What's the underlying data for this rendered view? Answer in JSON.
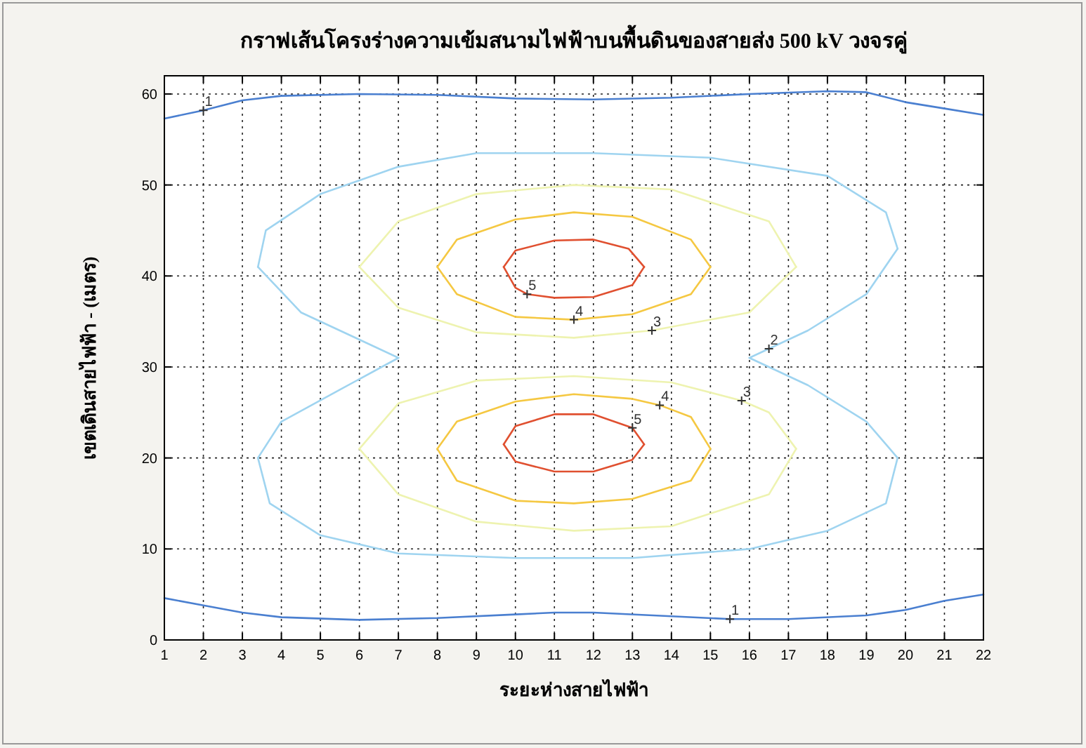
{
  "chart_data": {
    "type": "line",
    "title": "กราฟเส้นโครงร่างความเข้มสนามไฟฟ้าบนพื้นดินของสายส่ง 500 kV วงจรคู่",
    "xlabel": "ระยะห่างสายไฟฟ้า",
    "ylabel": "เขตเดินสายไฟฟ้า - (เมตร)",
    "xlim": [
      1,
      22
    ],
    "ylim": [
      0,
      62
    ],
    "xticks": [
      1,
      2,
      3,
      4,
      5,
      6,
      7,
      8,
      9,
      10,
      11,
      12,
      13,
      14,
      15,
      16,
      17,
      18,
      19,
      20,
      21,
      22
    ],
    "yticks": [
      0,
      10,
      20,
      30,
      40,
      50,
      60
    ],
    "grid": true,
    "series": [
      {
        "color": "#4a7fd0",
        "x": [
          1,
          2,
          3,
          4,
          6,
          8,
          10,
          12,
          14,
          16,
          18,
          19,
          20,
          21,
          22
        ],
        "values": [
          57.3,
          58.2,
          59.3,
          59.8,
          60,
          59.9,
          59.5,
          59.4,
          59.6,
          60,
          60.3,
          60.2,
          59.1,
          58.4,
          57.7
        ]
      },
      {
        "color": "#4a7fd0",
        "x": [
          1,
          2,
          3,
          4,
          6,
          8,
          10,
          11,
          12,
          14,
          15.5,
          17,
          19,
          20,
          21,
          22
        ],
        "values": [
          4.6,
          3.8,
          3,
          2.5,
          2.2,
          2.4,
          2.8,
          3,
          3,
          2.6,
          2.3,
          2.3,
          2.7,
          3.3,
          4.3,
          5
        ]
      },
      {
        "color": "#9fd4f0",
        "x": [
          3.4,
          4.5,
          6,
          7
        ],
        "values": [
          41,
          36,
          33,
          31
        ]
      },
      {
        "color": "#9fd4f0",
        "x": [
          3.4,
          3.6,
          5,
          7,
          9,
          12,
          15,
          18,
          19.5,
          19.8
        ],
        "values": [
          41,
          45,
          49,
          52,
          53.5,
          53.5,
          53,
          51,
          47,
          43
        ]
      },
      {
        "color": "#9fd4f0",
        "x": [
          16,
          17.5,
          19,
          19.8
        ],
        "values": [
          31,
          34,
          38,
          43
        ]
      },
      {
        "color": "#9fd4f0",
        "x": [
          16,
          17.5,
          19,
          19.8
        ],
        "values": [
          31,
          28,
          24,
          20
        ]
      },
      {
        "color": "#9fd4f0",
        "x": [
          3.4,
          3.7,
          5,
          7,
          10,
          13,
          16,
          18,
          19.5,
          19.8
        ],
        "values": [
          20,
          15,
          11.5,
          9.5,
          9,
          9,
          10,
          12,
          15,
          20
        ]
      },
      {
        "color": "#9fd4f0",
        "x": [
          3.4,
          4,
          5.5,
          7
        ],
        "values": [
          20,
          24,
          27.5,
          31
        ]
      },
      {
        "color": "#eef3b0",
        "x": [
          6,
          7,
          9,
          11.5,
          14,
          16.5,
          17.2
        ],
        "values": [
          41,
          46,
          49,
          50,
          49.5,
          46,
          41
        ]
      },
      {
        "color": "#eef3b0",
        "x": [
          6,
          7,
          9,
          11.5,
          13.5,
          16,
          17.2
        ],
        "values": [
          41,
          36.5,
          33.8,
          33.2,
          34,
          36,
          41
        ]
      },
      {
        "color": "#eef3b0",
        "x": [
          6,
          7,
          9,
          11.5,
          14,
          15.8,
          16.5,
          17.2
        ],
        "values": [
          21,
          26,
          28.5,
          29,
          28.3,
          26.3,
          25,
          21
        ]
      },
      {
        "color": "#eef3b0",
        "x": [
          6,
          7,
          9,
          11.5,
          14,
          16.5,
          17.2
        ],
        "values": [
          21,
          16,
          13,
          12,
          12.5,
          16,
          21
        ]
      },
      {
        "color": "#f5c842",
        "x": [
          8,
          8.5,
          10,
          11.5,
          13,
          14.5,
          15
        ],
        "values": [
          41,
          44,
          46.2,
          47,
          46.5,
          44,
          41
        ]
      },
      {
        "color": "#f5c842",
        "x": [
          8,
          8.5,
          10,
          11.5,
          13,
          14.5,
          15
        ],
        "values": [
          41,
          38,
          35.5,
          35.2,
          35.8,
          38,
          41
        ]
      },
      {
        "color": "#f5c842",
        "x": [
          8,
          8.5,
          10,
          11.5,
          13,
          13.7,
          14.5,
          15
        ],
        "values": [
          21,
          24,
          26.2,
          27,
          26.5,
          25.8,
          24.5,
          21
        ]
      },
      {
        "color": "#f5c842",
        "x": [
          8,
          8.5,
          10,
          11.5,
          13,
          14.5,
          15
        ],
        "values": [
          21,
          17.5,
          15.3,
          15,
          15.5,
          17.5,
          21
        ]
      },
      {
        "color": "#e05030",
        "x": [
          9.7,
          10,
          11,
          12,
          12.9,
          13.3
        ],
        "values": [
          41,
          42.8,
          43.9,
          44,
          43,
          41
        ]
      },
      {
        "color": "#e05030",
        "x": [
          9.7,
          10,
          10.3,
          11,
          12,
          13,
          13.3
        ],
        "values": [
          41,
          38.7,
          38,
          37.6,
          37.7,
          39,
          41
        ]
      },
      {
        "color": "#e05030",
        "x": [
          9.7,
          10,
          11,
          12,
          13,
          13.3
        ],
        "values": [
          21.5,
          23.5,
          24.8,
          24.8,
          23.3,
          21.5
        ]
      },
      {
        "color": "#e05030",
        "x": [
          9.7,
          10,
          11,
          12,
          13,
          13.3
        ],
        "values": [
          21.5,
          19.6,
          18.5,
          18.5,
          19.8,
          21.5
        ]
      }
    ],
    "annotations": [
      {
        "text": "1",
        "x": 2,
        "y": 58.2
      },
      {
        "text": "1",
        "x": 15.5,
        "y": 2.3
      },
      {
        "text": "2",
        "x": 16.5,
        "y": 32
      },
      {
        "text": "3",
        "x": 13.5,
        "y": 34
      },
      {
        "text": "3",
        "x": 15.8,
        "y": 26.3
      },
      {
        "text": "4",
        "x": 11.5,
        "y": 35.2
      },
      {
        "text": "4",
        "x": 13.7,
        "y": 25.8
      },
      {
        "text": "5",
        "x": 10.3,
        "y": 38
      },
      {
        "text": "5",
        "x": 13,
        "y": 23.3
      }
    ]
  }
}
